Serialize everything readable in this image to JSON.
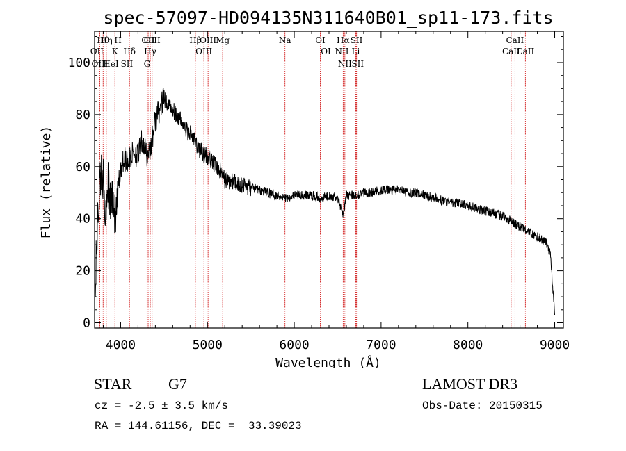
{
  "chart_data": {
    "type": "line",
    "title": "spec-57097-HD094135N311640B01_sp11-173.fits",
    "xlabel": "Wavelength (Å)",
    "ylabel": "Flux (relative)",
    "xlim": [
      3700,
      9100
    ],
    "ylim": [
      -2,
      112
    ],
    "xticks": [
      4000,
      5000,
      6000,
      7000,
      8000,
      9000
    ],
    "yticks": [
      0,
      20,
      40,
      60,
      80,
      100
    ],
    "grid": false,
    "series": [
      {
        "name": "flux",
        "x": [
          3700,
          3730,
          3760,
          3790,
          3820,
          3850,
          3880,
          3910,
          3940,
          3970,
          4000,
          4050,
          4100,
          4150,
          4200,
          4250,
          4300,
          4350,
          4400,
          4450,
          4500,
          4550,
          4600,
          4650,
          4700,
          4750,
          4800,
          4850,
          4900,
          4950,
          5000,
          5050,
          5100,
          5150,
          5200,
          5300,
          5400,
          5500,
          5600,
          5700,
          5800,
          5900,
          6000,
          6100,
          6200,
          6300,
          6400,
          6500,
          6563,
          6600,
          6700,
          6800,
          6900,
          7000,
          7100,
          7200,
          7300,
          7400,
          7500,
          7600,
          7700,
          7800,
          7900,
          8000,
          8100,
          8200,
          8300,
          8400,
          8500,
          8600,
          8700,
          8800,
          8900,
          8950,
          9000
        ],
        "y": [
          5,
          35,
          55,
          60,
          40,
          55,
          45,
          50,
          38,
          48,
          60,
          63,
          62,
          66,
          64,
          70,
          64,
          68,
          78,
          82,
          86,
          84,
          82,
          80,
          77,
          74,
          73,
          70,
          67,
          65,
          64,
          62,
          60,
          58,
          55,
          54,
          53,
          52,
          51,
          50,
          49,
          48,
          49,
          49,
          49,
          48,
          49,
          48,
          42,
          49,
          49,
          50,
          50,
          51,
          51,
          51,
          50,
          50,
          49,
          48,
          47,
          46,
          46,
          45,
          44,
          43,
          42,
          41,
          39,
          37,
          35,
          33,
          31,
          26,
          3
        ]
      }
    ],
    "lines": [
      {
        "name": "Hθ",
        "x": 3798
      },
      {
        "name": "OII",
        "x": 3727
      },
      {
        "name": "OIII",
        "x": 3760
      },
      {
        "name": "Hη",
        "x": 3835
      },
      {
        "name": "K",
        "x": 3934
      },
      {
        "name": "HeI",
        "x": 3889
      },
      {
        "name": "H",
        "x": 3969
      },
      {
        "name": "Hδ",
        "x": 4102
      },
      {
        "name": "SII",
        "x": 4072
      },
      {
        "name": "OII",
        "x": 4317
      },
      {
        "name": "Hγ",
        "x": 4341
      },
      {
        "name": "G",
        "x": 4304
      },
      {
        "name": "OIII",
        "x": 4363
      },
      {
        "name": "OIII",
        "x": 5007
      },
      {
        "name": "OIII",
        "x": 4959
      },
      {
        "name": "Hβ",
        "x": 4861
      },
      {
        "name": "Mg",
        "x": 5175
      },
      {
        "name": "Na",
        "x": 5893
      },
      {
        "name": "OI",
        "x": 6300
      },
      {
        "name": "OI",
        "x": 6364
      },
      {
        "name": "Hα",
        "x": 6563
      },
      {
        "name": "NII",
        "x": 6548
      },
      {
        "name": "NII",
        "x": 6583
      },
      {
        "name": "SII",
        "x": 6717
      },
      {
        "name": "Li",
        "x": 6708
      },
      {
        "name": "SII",
        "x": 6731
      },
      {
        "name": "CaII",
        "x": 8542
      },
      {
        "name": "CaII",
        "x": 8498
      },
      {
        "name": "CaII",
        "x": 8662
      }
    ]
  },
  "info": {
    "class": "STAR",
    "subclass": "G7",
    "survey": "LAMOST DR3",
    "cz": "cz = -2.5 ± 3.5 km/s",
    "obsdate": "Obs-Date: 20150315",
    "radec": "RA = 144.61156, DEC =  33.39023"
  }
}
